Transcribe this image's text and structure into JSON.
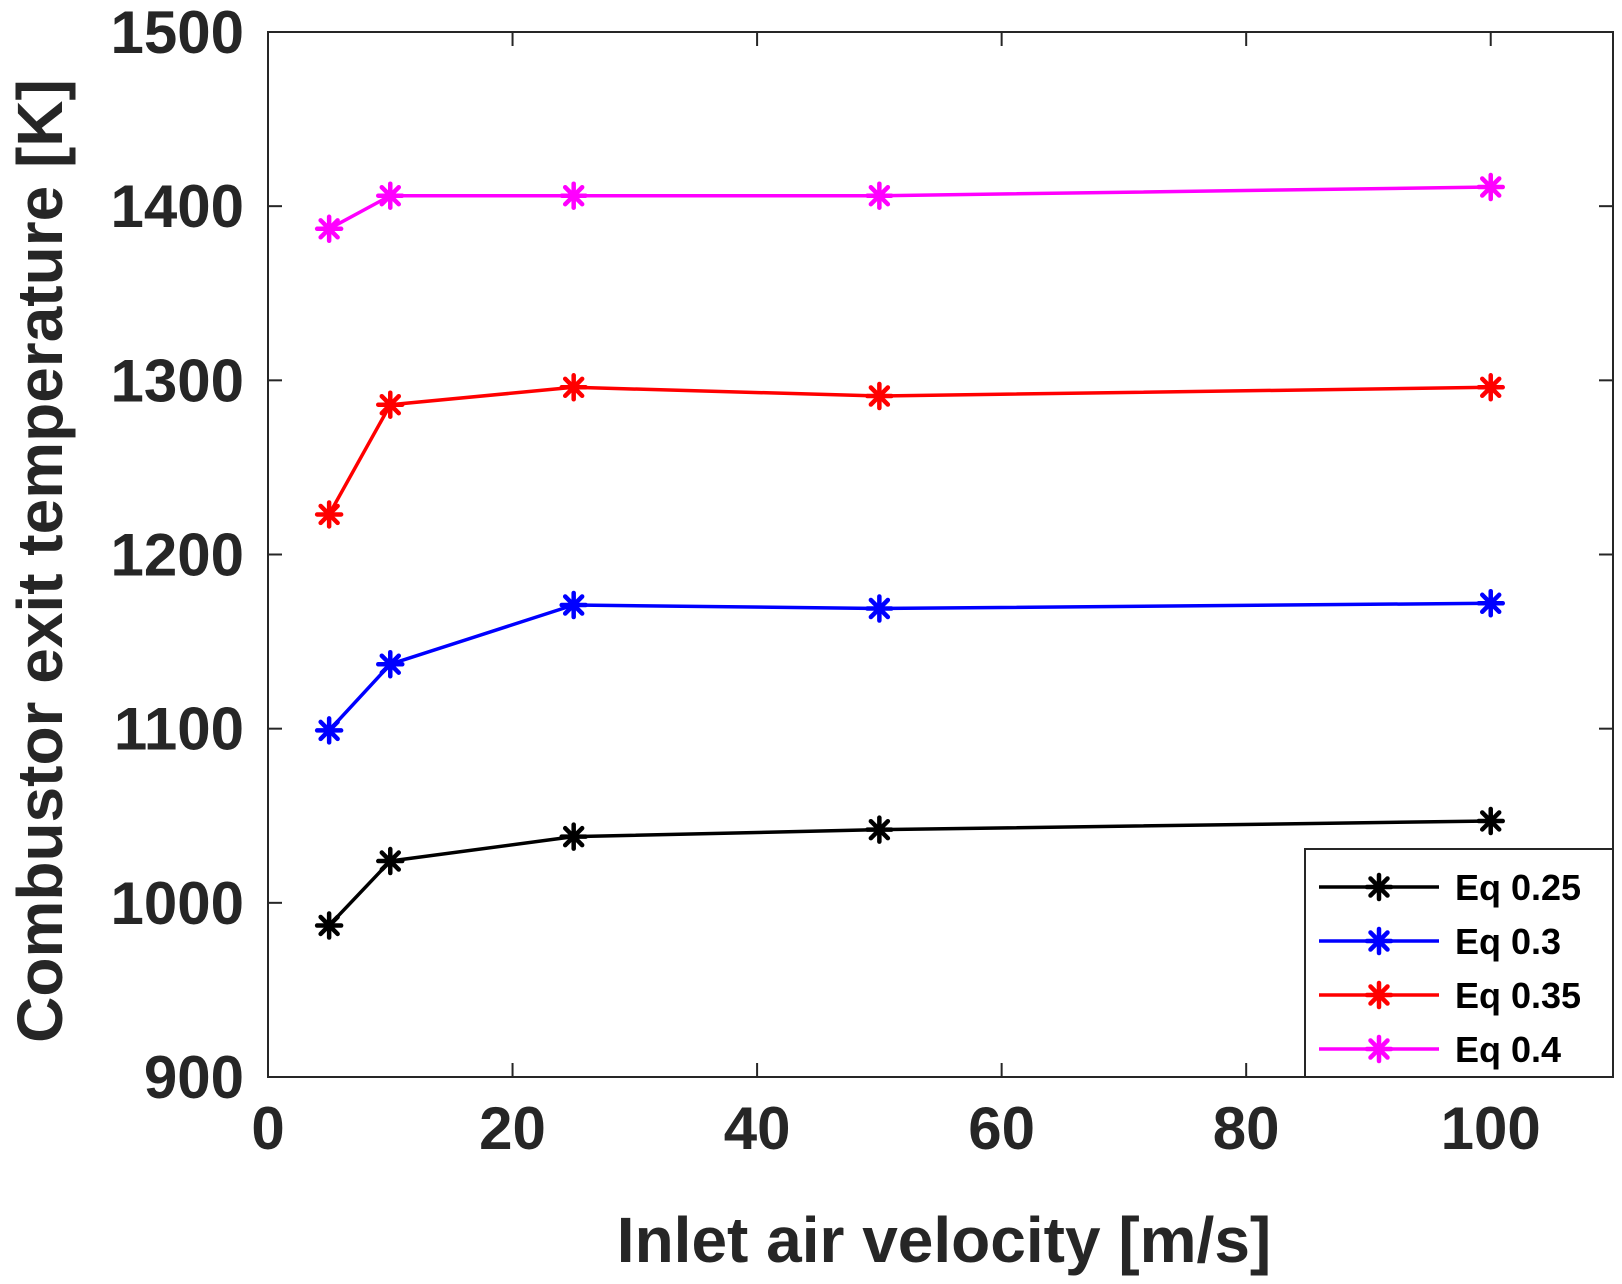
{
  "chart_data": {
    "type": "line",
    "title": "",
    "xlabel": "Inlet air velocity [m/s]",
    "ylabel": "Combustor exit temperature [K]",
    "xlim": [
      0,
      110
    ],
    "ylim": [
      900,
      1500
    ],
    "xticks": [
      0,
      20,
      40,
      60,
      80,
      100
    ],
    "xtick_labels": [
      "0",
      "20",
      "40",
      "60",
      "80",
      "100"
    ],
    "yticks": [
      900,
      1000,
      1100,
      1200,
      1300,
      1400,
      1500
    ],
    "ytick_labels": [
      "900",
      "1000",
      "1100",
      "1200",
      "1300",
      "1400",
      "1500"
    ],
    "grid": false,
    "legend_position": "bottom-right",
    "marker": "asterisk",
    "x": [
      5,
      10,
      25,
      50,
      100
    ],
    "series": [
      {
        "name": "Eq 0.25",
        "color": "#000000",
        "values": [
          987,
          1024,
          1038,
          1042,
          1047
        ]
      },
      {
        "name": "Eq 0.3",
        "color": "#0000ff",
        "values": [
          1099,
          1137,
          1171,
          1169,
          1172
        ]
      },
      {
        "name": "Eq 0.35",
        "color": "#ff0000",
        "values": [
          1223,
          1286,
          1296,
          1291,
          1296
        ]
      },
      {
        "name": "Eq 0.4",
        "color": "#ff00ff",
        "values": [
          1387,
          1406,
          1406,
          1406,
          1411
        ]
      }
    ]
  }
}
